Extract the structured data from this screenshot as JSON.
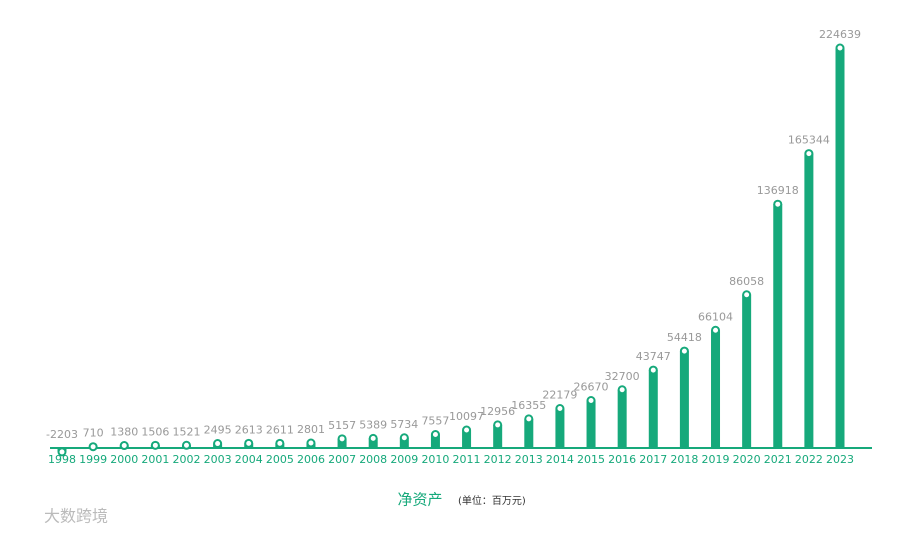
{
  "chart_data": {
    "type": "bar",
    "title": "净资产",
    "unit_note": "(单位：百万元)",
    "watermark": "大数跨境",
    "categories": [
      "1998",
      "1999",
      "2000",
      "2001",
      "2002",
      "2003",
      "2004",
      "2005",
      "2006",
      "2007",
      "2008",
      "2009",
      "2010",
      "2011",
      "2012",
      "2013",
      "2014",
      "2015",
      "2016",
      "2017",
      "2018",
      "2019",
      "2020",
      "2021",
      "2022",
      "2023"
    ],
    "values": [
      -2203,
      710,
      1380,
      1506,
      1521,
      2495,
      2613,
      2611,
      2801,
      5157,
      5389,
      5734,
      7557,
      10097,
      12956,
      16355,
      22179,
      26670,
      32700,
      43747,
      54418,
      66104,
      86058,
      136918,
      165344,
      224639
    ],
    "color": "#16a97b",
    "ylim": [
      0,
      224639
    ]
  }
}
